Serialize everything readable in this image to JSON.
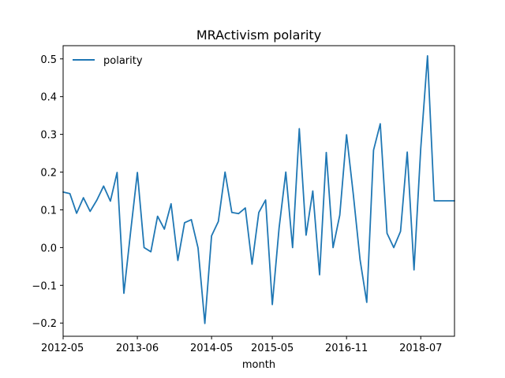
{
  "chart_data": {
    "type": "line",
    "title": "MRActivism polarity",
    "xlabel": "month",
    "ylabel": "",
    "ylim": [
      -0.235,
      0.535
    ],
    "x_ticks": [
      "2012-05",
      "2013-06",
      "2014-05",
      "2015-05",
      "2016-11",
      "2018-07"
    ],
    "y_ticks": [
      "−0.2",
      "−0.1",
      "0.0",
      "0.1",
      "0.2",
      "0.3",
      "0.4",
      "0.5"
    ],
    "y_tick_values": [
      -0.2,
      -0.1,
      0.0,
      0.1,
      0.2,
      0.3,
      0.4,
      0.5
    ],
    "legend_position": "top-left",
    "grid": false,
    "series": [
      {
        "name": "polarity",
        "color": "#1f77b4",
        "x": [
          "2012-05",
          "2012-06",
          "2012-07",
          "2012-08",
          "2012-09",
          "2012-10",
          "2012-11",
          "2012-12",
          "2013-01",
          "2013-02",
          "2013-03",
          "2013-06",
          "2013-07",
          "2013-08",
          "2013-09",
          "2013-10",
          "2013-11",
          "2013-12",
          "2014-01",
          "2014-02",
          "2014-03",
          "2014-04",
          "2014-05",
          "2014-06",
          "2014-07",
          "2014-08",
          "2014-09",
          "2014-10",
          "2014-11",
          "2014-12",
          "2015-01",
          "2015-05",
          "2015-06",
          "2015-07",
          "2015-08",
          "2015-09",
          "2015-10",
          "2016-05",
          "2016-06",
          "2016-07",
          "2016-08",
          "2016-09",
          "2016-11",
          "2016-12",
          "2017-01",
          "2017-02",
          "2017-03",
          "2017-04",
          "2017-05",
          "2017-06",
          "2018-01",
          "2018-03",
          "2018-05",
          "2018-07",
          "2018-08",
          "2018-09",
          "2018-10",
          "2018-11",
          "2018-12"
        ],
        "values": [
          0.147,
          0.143,
          0.091,
          0.132,
          0.096,
          0.126,
          0.163,
          0.123,
          0.199,
          -0.121,
          0.041,
          0.199,
          0.0,
          -0.011,
          0.083,
          0.049,
          0.116,
          -0.034,
          0.066,
          0.074,
          -0.001,
          -0.201,
          0.031,
          0.069,
          0.2,
          0.093,
          0.09,
          0.105,
          -0.044,
          0.093,
          0.126,
          -0.151,
          0.052,
          0.2,
          0.0,
          0.315,
          0.033,
          0.15,
          -0.072,
          0.252,
          0.0,
          0.086,
          0.299,
          0.142,
          -0.032,
          -0.145,
          0.258,
          0.328,
          0.038,
          0.0,
          0.043,
          0.253,
          -0.059,
          0.262,
          0.508,
          0.124,
          0.124,
          0.124,
          0.124
        ]
      }
    ]
  }
}
